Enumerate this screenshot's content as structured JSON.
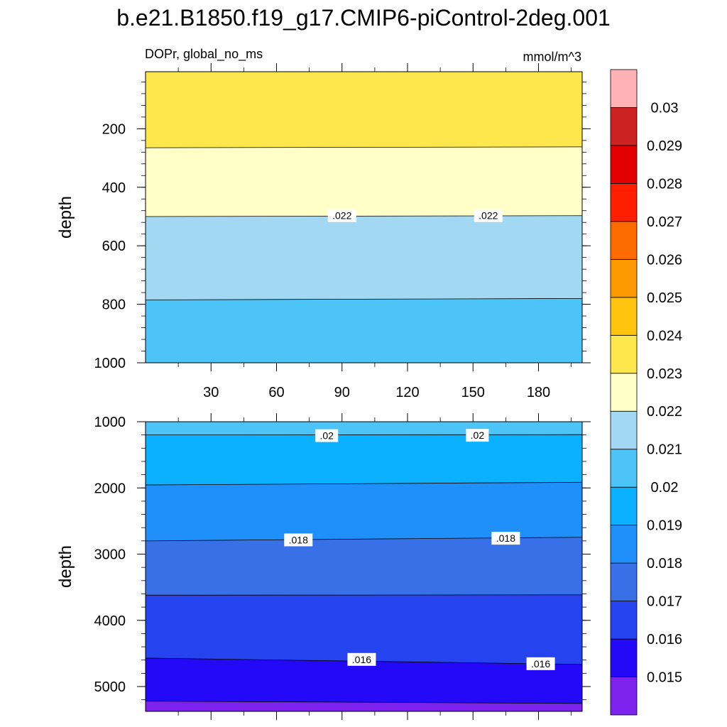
{
  "title": "b.e21.B1850.f19_g17.CMIP6-piControl-2deg.001",
  "subtitle_left": "DOPr, global_no_ms",
  "units": "mmol/m^3",
  "chart_data": [
    {
      "type": "contour",
      "name": "upper",
      "xlabel": "",
      "ylabel": "depth",
      "xlim": [
        0,
        200
      ],
      "ylim": [
        1000,
        5
      ],
      "y_reversed": true,
      "x_ticks": [
        30,
        60,
        90,
        120,
        150,
        180
      ],
      "y_ticks": [
        200,
        400,
        600,
        800,
        1000
      ],
      "bands": [
        {
          "from_depth": 5,
          "to_depth_left": 265,
          "to_depth_right": 262,
          "color": "#fde74c"
        },
        {
          "from_depth_left": 265,
          "from_depth_right": 262,
          "to_depth_left": 500,
          "to_depth_right": 497,
          "color": "#ffffc8"
        },
        {
          "from_depth_left": 500,
          "from_depth_right": 497,
          "to_depth_left": 785,
          "to_depth_right": 780,
          "color": "#a2d8f2"
        },
        {
          "from_depth_left": 785,
          "from_depth_right": 780,
          "to_depth": 1000,
          "color": "#4cc4f7"
        }
      ],
      "contour_labels": [
        {
          "text": ".022",
          "x": 90,
          "depth": 497
        },
        {
          "text": ".022",
          "x": 157,
          "depth": 497
        }
      ]
    },
    {
      "type": "contour",
      "name": "lower",
      "xlabel": "",
      "ylabel": "depth",
      "xlim": [
        0,
        200
      ],
      "ylim": [
        1000,
        5375
      ],
      "y_reversed": true,
      "x_ticks": [
        30,
        60,
        90,
        120,
        150,
        180
      ],
      "y_ticks": [
        1000,
        2000,
        3000,
        4000,
        5000
      ],
      "bands": [
        {
          "from_depth": 1000,
          "to_depth_left": 1200,
          "to_depth_right": 1195,
          "color": "#4cc4f7"
        },
        {
          "from_depth_left": 1200,
          "from_depth_right": 1195,
          "to_depth_left": 1955,
          "to_depth_right": 1915,
          "color": "#0bb1fe"
        },
        {
          "from_depth_left": 1955,
          "from_depth_right": 1915,
          "to_depth_left": 2800,
          "to_depth_right": 2745,
          "color": "#1f8ff9"
        },
        {
          "from_depth_left": 2800,
          "from_depth_right": 2745,
          "to_depth_left": 3620,
          "to_depth_right": 3615,
          "color": "#3870e8"
        },
        {
          "from_depth_left": 3620,
          "from_depth_right": 3615,
          "to_depth_left": 4570,
          "to_depth_right": 4665,
          "color": "#2544ef"
        },
        {
          "from_depth_left": 4570,
          "from_depth_right": 4665,
          "to_depth_left": 5220,
          "to_depth_right": 5255,
          "color": "#2409f8"
        },
        {
          "from_depth_left": 5220,
          "from_depth_right": 5255,
          "to_depth": 5375,
          "color": "#7c22ec"
        }
      ],
      "contour_labels": [
        {
          "text": ".02",
          "x": 83,
          "depth": 1210
        },
        {
          "text": ".02",
          "x": 152,
          "depth": 1205
        },
        {
          "text": ".018",
          "x": 70,
          "depth": 2785
        },
        {
          "text": ".018",
          "x": 165,
          "depth": 2760
        },
        {
          "text": ".016",
          "x": 99,
          "depth": 4590
        },
        {
          "text": ".016",
          "x": 181,
          "depth": 4655
        }
      ]
    }
  ],
  "colorbar": {
    "colors": [
      "#7c22ec",
      "#2409f8",
      "#2544ef",
      "#3870e8",
      "#1f8ff9",
      "#0bb1fe",
      "#4cc4f7",
      "#a2d8f2",
      "#ffffc8",
      "#fde74c",
      "#fdc30f",
      "#fd9900",
      "#fd6a00",
      "#fd1f00",
      "#e30000",
      "#cc2222",
      "#ffb1b4"
    ],
    "labels": [
      "0.015",
      "0.016",
      "0.017",
      "0.018",
      "0.019",
      "0.02",
      "0.021",
      "0.022",
      "0.023",
      "0.024",
      "0.025",
      "0.026",
      "0.027",
      "0.028",
      "0.029",
      "0.03"
    ]
  }
}
